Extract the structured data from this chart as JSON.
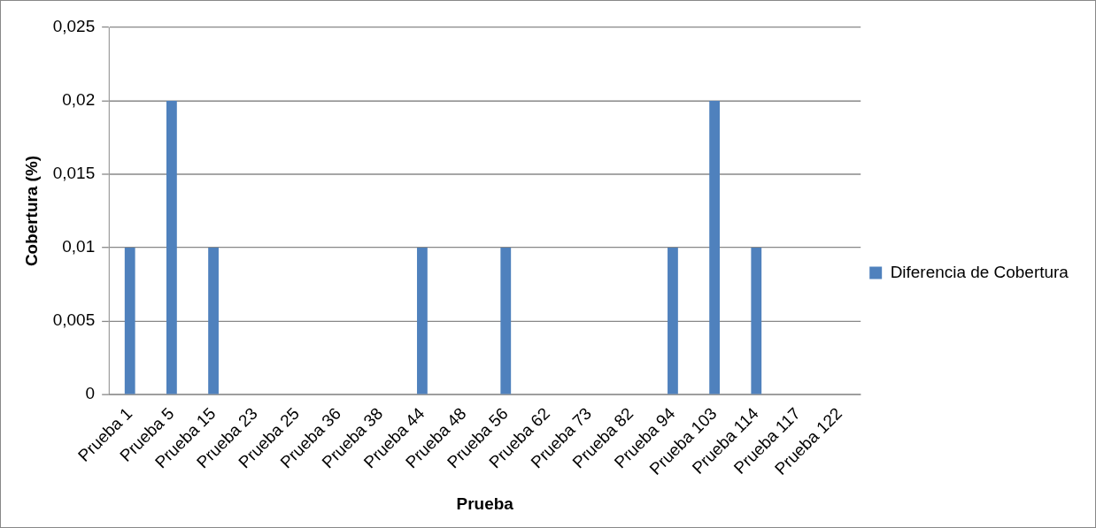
{
  "chart_data": {
    "type": "bar",
    "xlabel": "Prueba",
    "ylabel": "Cobertura (%)",
    "categories": [
      "Prueba 1",
      "Prueba 5",
      "Prueba 15",
      "Prueba 23",
      "Prueba 25",
      "Prueba 36",
      "Prueba 38",
      "Prueba 44",
      "Prueba 48",
      "Prueba 56",
      "Prueba 62",
      "Prueba 73",
      "Prueba 82",
      "Prueba 94",
      "Prueba 103",
      "Prueba 114",
      "Prueba 117",
      "Prueba 122"
    ],
    "series": [
      {
        "name": "Diferencia de Cobertura",
        "color": "#4f81bd",
        "values": [
          0.01,
          0.02,
          0.01,
          0,
          0,
          0,
          0,
          0.01,
          0,
          0.01,
          0,
          0,
          0,
          0.01,
          0.02,
          0.01,
          0,
          0
        ]
      }
    ],
    "ylim": [
      0,
      0.025
    ],
    "yticks": [
      0,
      {
        "value": 0.005,
        "label": "0,005"
      },
      {
        "value": 0.01,
        "label": "0,01"
      },
      {
        "value": 0.015,
        "label": "0,015"
      },
      {
        "value": 0.02,
        "label": "0,02"
      },
      {
        "value": 0.025,
        "label": "0,025"
      }
    ],
    "grid": "y",
    "legend": "right"
  }
}
